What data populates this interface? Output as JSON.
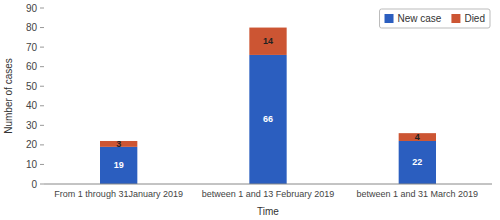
{
  "chart_data": {
    "type": "bar",
    "stacked": true,
    "categories": [
      "From 1 through 31January 2019",
      "between 1 and 13 February 2019",
      "between 1 and 31 March 2019"
    ],
    "series": [
      {
        "name": "New case",
        "color": "#2B5EBF",
        "values": [
          19,
          66,
          22
        ]
      },
      {
        "name": "Died",
        "color": "#CC5533",
        "values": [
          3,
          14,
          4
        ]
      }
    ],
    "xlabel": "Time",
    "ylabel": "Number of cases",
    "ylim": [
      0,
      90
    ],
    "yticks": [
      0,
      10,
      20,
      30,
      40,
      50,
      60,
      70,
      80,
      90
    ],
    "grid": false,
    "legend": "upper right",
    "data_labels": true
  }
}
